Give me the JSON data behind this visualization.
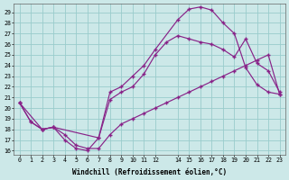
{
  "xlabel": "Windchill (Refroidissement éolien,°C)",
  "background_color": "#cce8e8",
  "line_color": "#882288",
  "grid_color": "#99cccc",
  "xlim": [
    -0.5,
    23.5
  ],
  "ylim": [
    15.6,
    29.8
  ],
  "xticks": [
    0,
    1,
    2,
    3,
    4,
    5,
    6,
    7,
    8,
    9,
    10,
    11,
    12,
    14,
    15,
    16,
    17,
    18,
    19,
    20,
    21,
    22,
    23
  ],
  "yticks": [
    16,
    17,
    18,
    19,
    20,
    21,
    22,
    23,
    24,
    25,
    26,
    27,
    28,
    29
  ],
  "line1_x": [
    0,
    1,
    2,
    3,
    4,
    5,
    6,
    7,
    8,
    9,
    10,
    11,
    12,
    14,
    15,
    16,
    17,
    18,
    19,
    20,
    21,
    22,
    23
  ],
  "line1_y": [
    20.5,
    18.7,
    18.0,
    18.2,
    17.0,
    16.2,
    16.0,
    17.2,
    21.5,
    22.0,
    23.0,
    24.0,
    25.5,
    28.3,
    29.3,
    29.5,
    29.2,
    28.0,
    27.0,
    23.8,
    22.2,
    21.5,
    21.3
  ],
  "line2_x": [
    0,
    2,
    3,
    7,
    8,
    9,
    10,
    11,
    12,
    13,
    14,
    15,
    16,
    17,
    18,
    19,
    20,
    21,
    22,
    23
  ],
  "line2_y": [
    20.5,
    18.0,
    18.2,
    17.2,
    20.8,
    21.5,
    22.0,
    23.2,
    25.0,
    26.2,
    26.8,
    26.5,
    26.2,
    26.0,
    25.5,
    24.8,
    26.5,
    24.2,
    23.5,
    21.5
  ],
  "line3_x": [
    0,
    1,
    2,
    3,
    4,
    5,
    6,
    7,
    8,
    9,
    10,
    11,
    12,
    13,
    14,
    15,
    16,
    17,
    18,
    19,
    20,
    21,
    22,
    23
  ],
  "line3_y": [
    20.5,
    18.7,
    18.0,
    18.2,
    17.5,
    16.5,
    16.2,
    16.2,
    17.5,
    18.5,
    19.0,
    19.5,
    20.0,
    20.5,
    21.0,
    21.5,
    22.0,
    22.5,
    23.0,
    23.5,
    24.0,
    24.5,
    25.0,
    21.3
  ]
}
